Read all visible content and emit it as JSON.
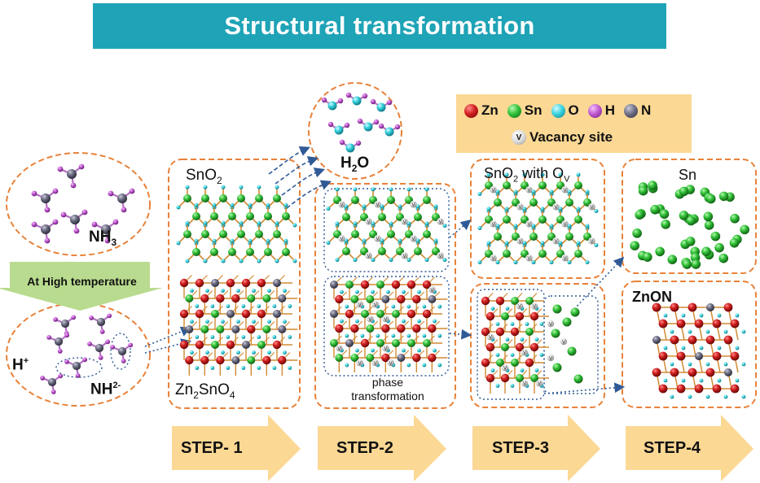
{
  "title": "Structural transformation",
  "legend": {
    "items": [
      {
        "label": "Zn",
        "color": "#d11f1f"
      },
      {
        "label": "Sn",
        "color": "#34c33a"
      },
      {
        "label": "O",
        "color": "#39d3df"
      },
      {
        "label": "H",
        "color": "#c25bd1"
      },
      {
        "label": "N",
        "color": "#6b6b6b"
      }
    ],
    "vacancy_symbol": "V",
    "vacancy_label": "Vacancy site"
  },
  "nh3_label": "NH",
  "nh3_sub": "3",
  "temperature_label": "At High temperature",
  "hplus_label": "H",
  "hplus_sup": "+",
  "nh2_label": "NH",
  "nh2_sup": "2-",
  "h2o_label": "H",
  "h2o_sub": "2",
  "h2o_tail": "O",
  "sno2_label": "SnO",
  "sno2_sub": "2",
  "zn2sno4": {
    "a": "Zn",
    "a_sub": "2",
    "b": "SnO",
    "b_sub": "4"
  },
  "phase_label": [
    "phase",
    "transformation"
  ],
  "sno2_ov": {
    "a": "SnO",
    "a_sub": "2",
    "b": " with O",
    "b_sub": "V"
  },
  "sn_label": "Sn",
  "znon_label": "ZnON",
  "steps": [
    "STEP- 1",
    "STEP-2",
    "STEP-3",
    "STEP-4"
  ],
  "colors": {
    "banner": "#1fa3b6",
    "dashed_box": "#e8823a",
    "arrow_blue": "#2f5a96",
    "step_arrow": "#fbd894",
    "green_arrow": "#b9db8f",
    "bond": "#d28a32"
  }
}
